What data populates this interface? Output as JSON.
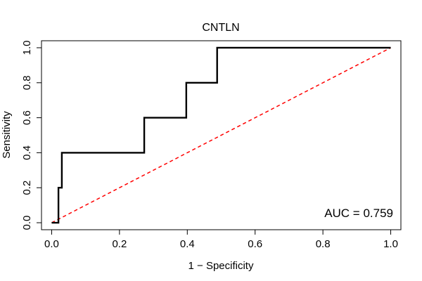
{
  "chart_data": {
    "type": "line",
    "title": "CNTLN",
    "xlabel": "1 − Specificity",
    "ylabel": "Sensitivity",
    "xlim": [
      -0.03,
      1.03
    ],
    "ylim": [
      -0.04,
      1.04
    ],
    "x_ticks": [
      "0.0",
      "0.2",
      "0.4",
      "0.6",
      "0.8",
      "1.0"
    ],
    "y_ticks": [
      "0.0",
      "0.2",
      "0.4",
      "0.6",
      "0.8",
      "1.0"
    ],
    "grid": false,
    "series": [
      {
        "color": "#000000",
        "style": "solid-step",
        "x": [
          0.0,
          0.0,
          0.02,
          0.02,
          0.023,
          0.023,
          0.03,
          0.03,
          0.273,
          0.273,
          0.397,
          0.397,
          0.488,
          0.488,
          1.0
        ],
        "y": [
          0.0,
          0.0,
          0.0,
          0.2,
          0.2,
          0.2,
          0.2,
          0.4,
          0.4,
          0.6,
          0.6,
          0.8,
          0.8,
          1.0,
          1.0
        ]
      },
      {
        "color": "#ff0000",
        "style": "dashed",
        "x": [
          0,
          1
        ],
        "y": [
          0,
          1
        ]
      }
    ],
    "annotations": [
      {
        "text": "AUC = 0.759"
      }
    ]
  }
}
